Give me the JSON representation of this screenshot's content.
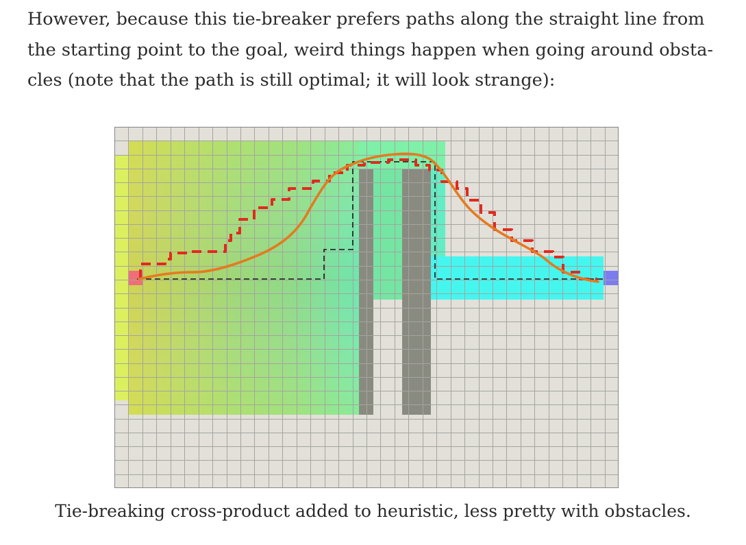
{
  "paragraph": {
    "lines": [
      "However, because this tie-breaker prefers paths along the straight line from",
      "the starting point to the goal, weird things happen when going around obsta-",
      "cles (note that the path is still optimal; it will look strange):"
    ]
  },
  "figure": {
    "grid": {
      "cols": 36,
      "rows": 26
    },
    "colors": {
      "empty_cell": "#e2e0d9",
      "grid_line": "#a4a4a0",
      "border": "#858585",
      "wall": "#8a8b80",
      "start": "#f06e78",
      "goal": "#7c7cf0",
      "explored_left": "#cfd05a",
      "explored_mid": "#92dc84",
      "explored_right": "#43f7ef",
      "path_black": "#151515",
      "annotation_red": "#e2291f",
      "annotation_orange": "#e57a20"
    }
  },
  "caption": {
    "text": "Tie-breaking cross-product added to heuristic, less pretty with obstacles."
  }
}
